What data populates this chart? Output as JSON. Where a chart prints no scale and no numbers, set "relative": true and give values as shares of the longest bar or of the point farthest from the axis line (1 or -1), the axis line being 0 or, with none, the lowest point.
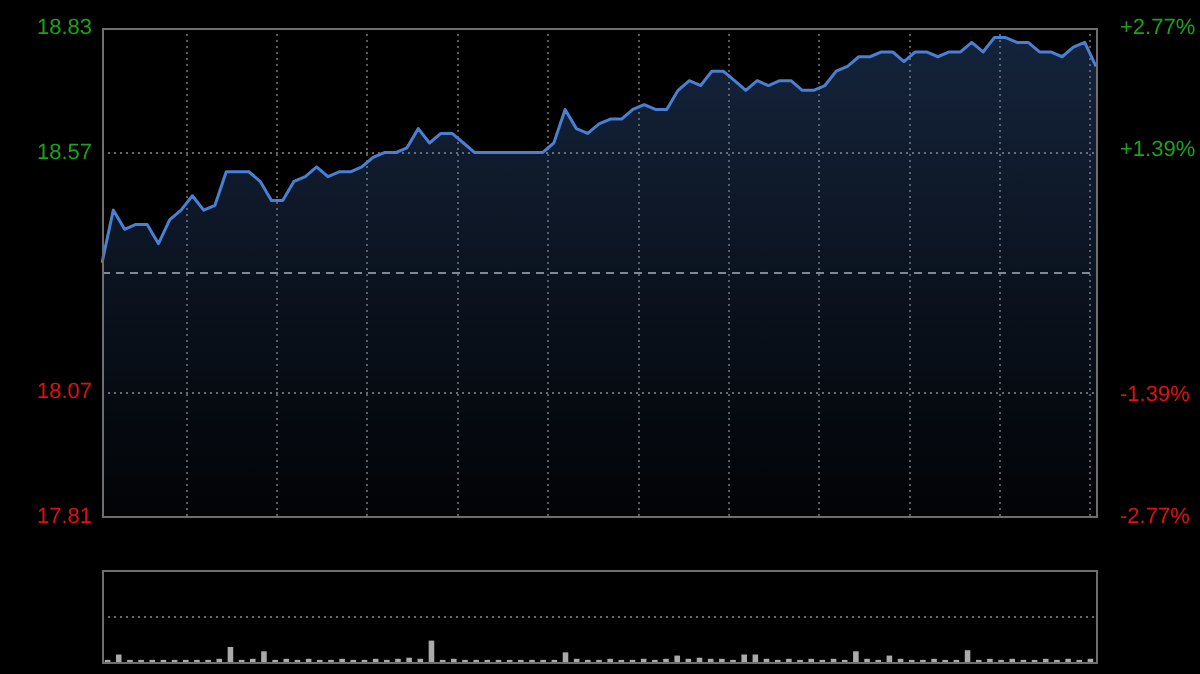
{
  "chart_data": [
    {
      "type": "area",
      "categories": [
        null,
        null,
        null,
        null,
        null,
        null,
        null,
        null,
        null,
        null,
        null,
        null,
        null,
        null,
        null,
        null,
        null,
        null,
        null,
        null,
        null,
        null,
        null,
        null,
        null,
        null,
        null,
        null,
        null,
        null,
        null,
        null,
        null,
        null,
        null,
        null,
        null,
        null,
        null,
        null,
        null,
        null,
        null,
        null,
        null,
        null,
        null,
        null,
        null,
        null,
        null,
        null,
        null,
        null,
        null,
        null,
        null,
        null,
        null,
        null,
        null,
        null,
        null,
        null,
        null,
        null,
        null,
        null,
        null,
        null,
        null,
        null,
        null,
        null,
        null,
        null,
        null,
        null,
        null,
        null,
        null,
        null,
        null,
        null,
        null,
        null,
        null,
        null,
        null
      ],
      "series": [
        {
          "color": "#4a7fd4",
          "values": [
            18.34,
            18.45,
            18.41,
            18.42,
            18.42,
            18.38,
            18.43,
            18.45,
            18.48,
            18.45,
            18.46,
            18.53,
            18.53,
            18.53,
            18.51,
            18.47,
            18.47,
            18.51,
            18.52,
            18.54,
            18.52,
            18.53,
            18.53,
            18.54,
            18.56,
            18.57,
            18.57,
            18.58,
            18.62,
            18.59,
            18.61,
            18.61,
            18.59,
            18.57,
            18.57,
            18.57,
            18.57,
            18.57,
            18.57,
            18.57,
            18.59,
            18.66,
            18.62,
            18.61,
            18.63,
            18.64,
            18.64,
            18.66,
            18.67,
            18.66,
            18.66,
            18.7,
            18.72,
            18.71,
            18.74,
            18.74,
            18.72,
            18.7,
            18.72,
            18.71,
            18.72,
            18.72,
            18.7,
            18.7,
            18.71,
            18.74,
            18.75,
            18.77,
            18.77,
            18.78,
            18.78,
            18.76,
            18.78,
            18.78,
            18.77,
            18.78,
            18.78,
            18.8,
            18.78,
            18.81,
            18.81,
            18.8,
            18.8,
            18.78,
            18.78,
            18.77,
            18.79,
            18.8,
            18.75
          ]
        }
      ],
      "ylim": [
        17.81,
        18.83
      ],
      "yticks": [
        17.81,
        18.07,
        18.57,
        18.83
      ],
      "y2lim": [
        -2.77,
        2.77
      ],
      "y2ticks": [
        {
          "value": -2.77,
          "label": "-2.77%"
        },
        {
          "value": -1.39,
          "label": "-1.39%"
        },
        {
          "value": 1.39,
          "label": "+1.39%"
        },
        {
          "value": 2.77,
          "label": "+2.77%"
        }
      ],
      "ref_lines": [
        {
          "axis": "y",
          "value": 18.32,
          "color": "#8a8a8a",
          "line_style": "dashed"
        }
      ],
      "grid": true
    },
    {
      "type": "bar",
      "relative": true,
      "categories": [
        null,
        null,
        null,
        null,
        null,
        null,
        null,
        null,
        null,
        null,
        null,
        null,
        null,
        null,
        null,
        null,
        null,
        null,
        null,
        null,
        null,
        null,
        null,
        null,
        null,
        null,
        null,
        null,
        null,
        null,
        null,
        null,
        null,
        null,
        null,
        null,
        null,
        null,
        null,
        null,
        null,
        null,
        null,
        null,
        null,
        null,
        null,
        null,
        null,
        null,
        null,
        null,
        null,
        null,
        null,
        null,
        null,
        null,
        null,
        null,
        null,
        null,
        null,
        null,
        null,
        null,
        null,
        null,
        null,
        null,
        null,
        null,
        null,
        null,
        null,
        null,
        null,
        null,
        null,
        null,
        null,
        null,
        null,
        null,
        null,
        null,
        null,
        null,
        null
      ],
      "series": [
        {
          "color": "#aaaaaa",
          "values": [
            0.1,
            0.35,
            0.1,
            0.1,
            0.1,
            0.1,
            0.1,
            0.1,
            0.1,
            0.1,
            0.15,
            0.7,
            0.1,
            0.15,
            0.5,
            0.1,
            0.15,
            0.1,
            0.15,
            0.1,
            0.1,
            0.15,
            0.1,
            0.1,
            0.15,
            0.1,
            0.15,
            0.2,
            0.15,
            1,
            0.1,
            0.15,
            0.1,
            0.1,
            0.1,
            0.1,
            0.1,
            0.1,
            0.1,
            0.1,
            0.1,
            0.45,
            0.15,
            0.1,
            0.1,
            0.15,
            0.1,
            0.1,
            0.15,
            0.1,
            0.15,
            0.3,
            0.15,
            0.2,
            0.15,
            0.15,
            0.1,
            0.35,
            0.35,
            0.15,
            0.1,
            0.15,
            0.1,
            0.15,
            0.1,
            0.15,
            0.1,
            0.5,
            0.15,
            0.1,
            0.3,
            0.15,
            0.1,
            0.1,
            0.15,
            0.1,
            0.1,
            0.55,
            0.1,
            0.15,
            0.1,
            0.15,
            0.1,
            0.1,
            0.15,
            0.1,
            0.15,
            0.1,
            0.15
          ]
        }
      ],
      "ref_lines": [
        {
          "axis": "y",
          "value": 2.14,
          "color": "#6a6a6a",
          "line_style": "dotted"
        }
      ]
    }
  ]
}
